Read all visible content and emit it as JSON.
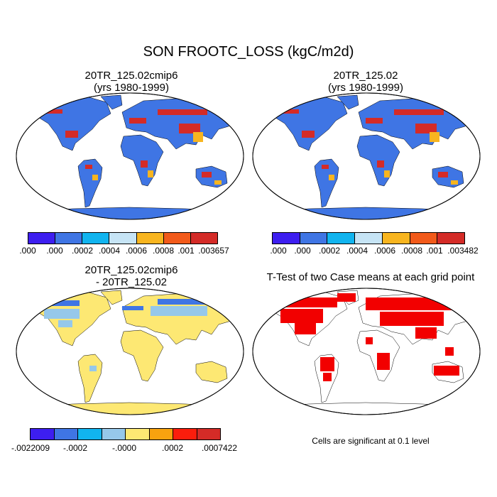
{
  "main_title": "SON FROOTC_LOSS (kgC/m2d)",
  "panels": {
    "p1": {
      "title_line1": "20TR_125.02cmip6",
      "title_line2": "(yrs 1980-1999)"
    },
    "p2": {
      "title_line1": "20TR_125.02",
      "title_line2": "(yrs 1980-1999)"
    },
    "p3": {
      "title_line1": "20TR_125.02cmip6",
      "title_line2": "- 20TR_125.02"
    },
    "p4": {
      "title_line1": "T-Test of two Case means at each grid point",
      "note": "Cells are significant at 0.1 level"
    }
  },
  "colorbars": {
    "cb1": {
      "colors": [
        "#3d1ef0",
        "#3f75e4",
        "#11b4ef",
        "#c6e4f5",
        "#f8b51f",
        "#f25a1a",
        "#d42b27"
      ],
      "labels": [
        ".000",
        ".000",
        ".0002",
        ".0004",
        ".0006",
        ".0008",
        ".001",
        ".003657"
      ]
    },
    "cb2": {
      "colors": [
        "#3d1ef0",
        "#3f75e4",
        "#11b4ef",
        "#c6e4f5",
        "#f8b51f",
        "#f25a1a",
        "#d42b27"
      ],
      "labels": [
        ".000",
        ".000",
        ".0002",
        ".0004",
        ".0006",
        ".0008",
        ".001",
        ".003482"
      ]
    },
    "cb3": {
      "colors": [
        "#3d1ef0",
        "#3f75e4",
        "#11b4ef",
        "#96c8ea",
        "#fde873",
        "#f8a20f",
        "#fb1d0c",
        "#d42b27"
      ],
      "labels": [
        "-.0022009",
        "-.0002",
        "-.0000",
        ".0002",
        ".0007422"
      ]
    }
  },
  "map_colors": {
    "ocean": "#ffffff",
    "land_p1": "#3f75e4",
    "land_p3": "#fde873",
    "signif": "#f20000",
    "outline": "#000000"
  }
}
